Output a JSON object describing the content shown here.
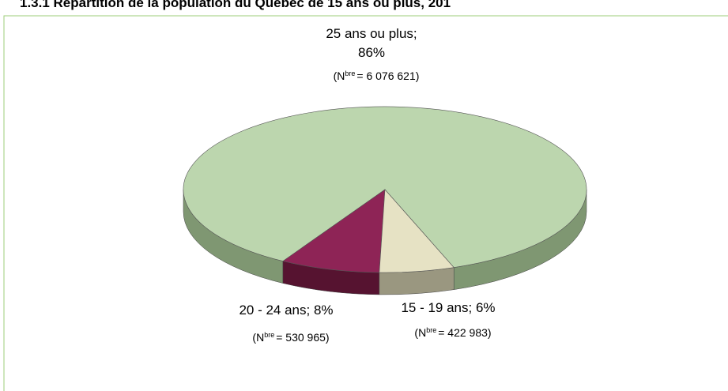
{
  "chart_data": {
    "type": "pie3d",
    "title": "1.3.1    Répartition de la population du Québec de 15 ans ou plus, 201",
    "categories": [
      "25 ans ou plus",
      "20 - 24 ans",
      "15 - 19 ans"
    ],
    "values": [
      86,
      8,
      6
    ],
    "value_labels": [
      "86%",
      "8%",
      "6%"
    ],
    "label_separator": ";",
    "colors": [
      "#bcd6ae",
      "#8e2456",
      "#e6e2c4"
    ],
    "side_colors": [
      "#7f9772",
      "#561330",
      "#9a9780"
    ],
    "count_open": "(",
    "count_symbol": "N",
    "count_superscript": "bre",
    "count_labels": [
      "= 6 076 621",
      "= 530 965",
      "= 422 983"
    ],
    "count_close": ")"
  }
}
